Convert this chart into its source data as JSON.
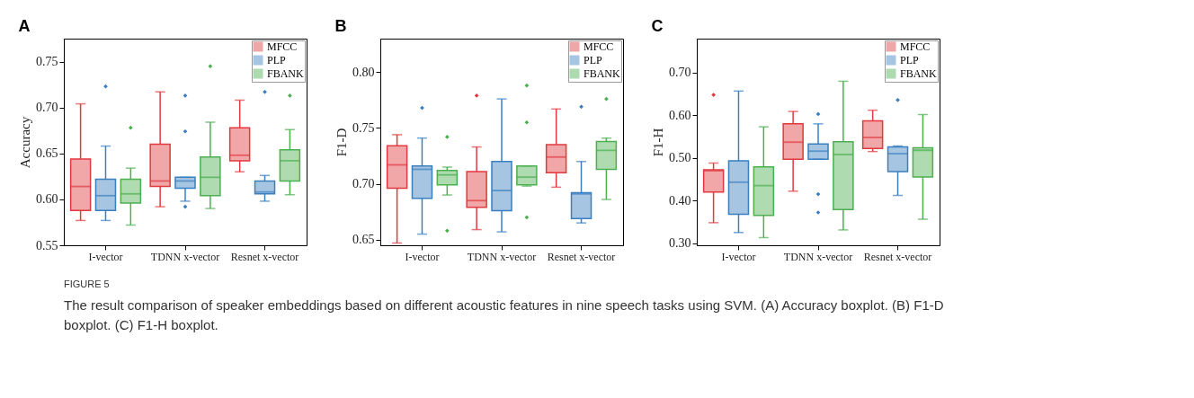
{
  "chart_data": [
    {
      "type": "box",
      "title": "A",
      "ylabel": "Accuracy",
      "categories": [
        "I-vector",
        "TDNN x-vector",
        "Resnet x-vector"
      ],
      "ylim": [
        0.55,
        0.775
      ],
      "yticks": [
        0.55,
        {
          "value": 0.6,
          "label": "0.60"
        },
        0.65,
        {
          "value": 0.7,
          "label": "0.70"
        },
        0.75
      ],
      "legend": "top right",
      "grid": false,
      "series": [
        {
          "name": "MFCC",
          "color": "#e03a3e",
          "boxes": [
            {
              "low": 0.577,
              "q1": 0.588,
              "median": 0.614,
              "q3": 0.644,
              "high": 0.704
            },
            {
              "low": 0.592,
              "q1": 0.614,
              "median": 0.62,
              "q3": 0.66,
              "high": 0.717
            },
            {
              "low": 0.63,
              "q1": 0.642,
              "median": 0.648,
              "q3": 0.678,
              "high": 0.708
            }
          ]
        },
        {
          "name": "PLP",
          "color": "#3a7fc0",
          "boxes": [
            {
              "low": 0.577,
              "q1": 0.588,
              "median": 0.604,
              "q3": 0.622,
              "high": 0.658,
              "outliers": [
                0.723
              ]
            },
            {
              "low": 0.598,
              "q1": 0.612,
              "median": 0.62,
              "q3": 0.624,
              "high": 0.624,
              "outliers": [
                0.713,
                0.674,
                0.592
              ]
            },
            {
              "low": 0.598,
              "q1": 0.606,
              "median": 0.608,
              "q3": 0.62,
              "high": 0.626,
              "outliers": [
                0.717
              ]
            }
          ]
        },
        {
          "name": "FBANK",
          "color": "#4caf50",
          "boxes": [
            {
              "low": 0.572,
              "q1": 0.596,
              "median": 0.606,
              "q3": 0.622,
              "high": 0.634,
              "outliers": [
                0.678
              ]
            },
            {
              "low": 0.59,
              "q1": 0.604,
              "median": 0.624,
              "q3": 0.646,
              "high": 0.684,
              "outliers": [
                0.745
              ]
            },
            {
              "low": 0.605,
              "q1": 0.62,
              "median": 0.642,
              "q3": 0.654,
              "high": 0.676,
              "outliers": [
                0.713
              ]
            }
          ]
        }
      ],
      "annotations": [
        "FIGURE 5",
        "The result comparison of speaker embeddings based on different acoustic features in nine speech tasks using SVM. (A) Accuracy boxplot. (B) F1-D boxplot. (C) F1-H boxplot."
      ]
    },
    {
      "type": "box",
      "title": "B",
      "ylabel": "F1-D",
      "categories": [
        "I-vector",
        "TDNN x-vector",
        "Resnet x-vector"
      ],
      "ylim": [
        0.645,
        0.83
      ],
      "yticks": [
        0.65,
        {
          "value": 0.7,
          "label": "0.70"
        },
        0.75,
        {
          "value": 0.8,
          "label": "0.80"
        }
      ],
      "legend": "top right",
      "grid": false,
      "series": [
        {
          "name": "MFCC",
          "color": "#e03a3e",
          "boxes": [
            {
              "low": 0.647,
              "q1": 0.696,
              "median": 0.717,
              "q3": 0.734,
              "high": 0.744
            },
            {
              "low": 0.659,
              "q1": 0.679,
              "median": 0.685,
              "q3": 0.711,
              "high": 0.733,
              "outliers": [
                0.779
              ]
            },
            {
              "low": 0.697,
              "q1": 0.71,
              "median": 0.724,
              "q3": 0.735,
              "high": 0.767
            }
          ]
        },
        {
          "name": "PLP",
          "color": "#3a7fc0",
          "boxes": [
            {
              "low": 0.655,
              "q1": 0.687,
              "median": 0.713,
              "q3": 0.716,
              "high": 0.741,
              "outliers": [
                0.768
              ]
            },
            {
              "low": 0.657,
              "q1": 0.676,
              "median": 0.694,
              "q3": 0.72,
              "high": 0.776
            },
            {
              "low": 0.665,
              "q1": 0.669,
              "median": 0.691,
              "q3": 0.692,
              "high": 0.72,
              "outliers": [
                0.769
              ]
            }
          ]
        },
        {
          "name": "FBANK",
          "color": "#4caf50",
          "boxes": [
            {
              "low": 0.69,
              "q1": 0.699,
              "median": 0.708,
              "q3": 0.712,
              "high": 0.715,
              "outliers": [
                0.742,
                0.658
              ]
            },
            {
              "low": 0.698,
              "q1": 0.699,
              "median": 0.706,
              "q3": 0.716,
              "high": 0.716,
              "outliers": [
                0.788,
                0.755,
                0.67
              ]
            },
            {
              "low": 0.686,
              "q1": 0.713,
              "median": 0.73,
              "q3": 0.738,
              "high": 0.741,
              "outliers": [
                0.776
              ]
            }
          ]
        }
      ]
    },
    {
      "type": "box",
      "title": "C",
      "ylabel": "F1-H",
      "categories": [
        "I-vector",
        "TDNN x-vector",
        "Resnet x-vector"
      ],
      "ylim": [
        0.295,
        0.78
      ],
      "yticks": [
        {
          "value": 0.3,
          "label": "0.30"
        },
        {
          "value": 0.4,
          "label": "0.40"
        },
        {
          "value": 0.5,
          "label": "0.50"
        },
        {
          "value": 0.6,
          "label": "0.60"
        },
        {
          "value": 0.7,
          "label": "0.70"
        }
      ],
      "legend": "top right",
      "grid": false,
      "series": [
        {
          "name": "MFCC",
          "color": "#e03a3e",
          "boxes": [
            {
              "low": 0.348,
              "q1": 0.42,
              "median": 0.47,
              "q3": 0.472,
              "high": 0.488,
              "outliers": [
                0.648
              ]
            },
            {
              "low": 0.422,
              "q1": 0.497,
              "median": 0.537,
              "q3": 0.58,
              "high": 0.609
            },
            {
              "low": 0.515,
              "q1": 0.522,
              "median": 0.548,
              "q3": 0.587,
              "high": 0.612
            }
          ]
        },
        {
          "name": "PLP",
          "color": "#3a7fc0",
          "boxes": [
            {
              "low": 0.325,
              "q1": 0.368,
              "median": 0.443,
              "q3": 0.493,
              "high": 0.657
            },
            {
              "low": 0.497,
              "q1": 0.497,
              "median": 0.516,
              "q3": 0.533,
              "high": 0.58,
              "outliers": [
                0.603,
                0.415,
                0.372
              ]
            },
            {
              "low": 0.412,
              "q1": 0.468,
              "median": 0.51,
              "q3": 0.526,
              "high": 0.528,
              "outliers": [
                0.636
              ]
            }
          ]
        },
        {
          "name": "FBANK",
          "color": "#4caf50",
          "boxes": [
            {
              "low": 0.313,
              "q1": 0.365,
              "median": 0.435,
              "q3": 0.479,
              "high": 0.573
            },
            {
              "low": 0.331,
              "q1": 0.379,
              "median": 0.508,
              "q3": 0.538,
              "high": 0.68
            },
            {
              "low": 0.356,
              "q1": 0.455,
              "median": 0.518,
              "q3": 0.524,
              "high": 0.602
            }
          ]
        }
      ]
    }
  ]
}
